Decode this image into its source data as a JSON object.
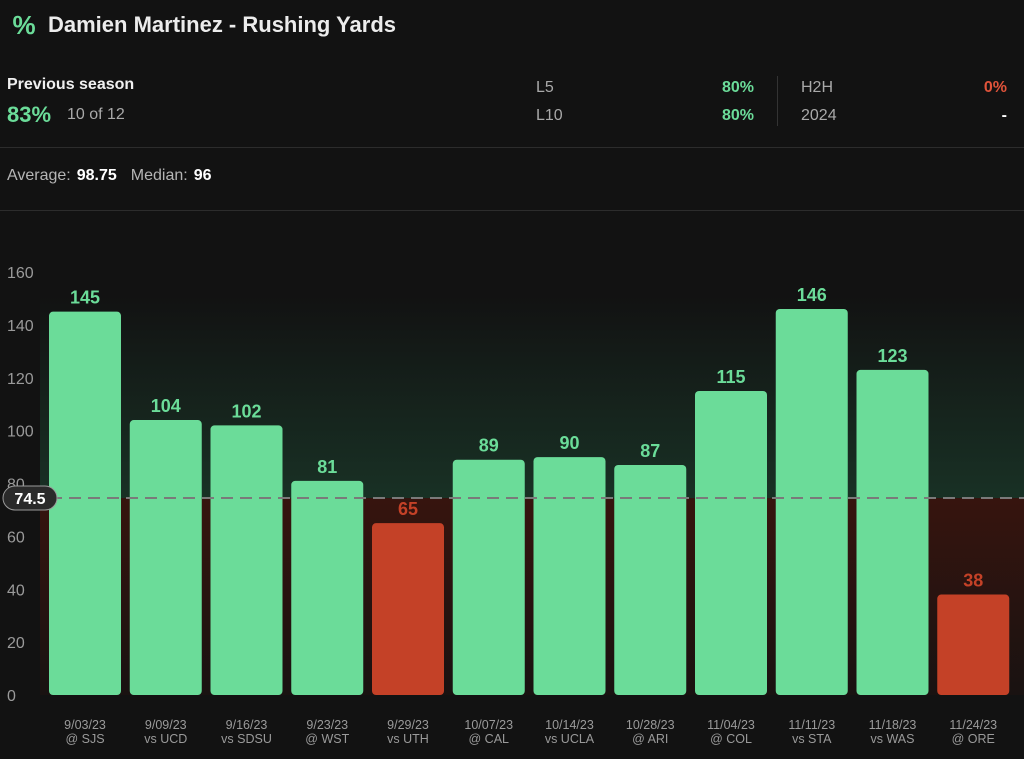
{
  "header": {
    "icon": "percent-icon",
    "title": "Damien Martinez - Rushing Yards"
  },
  "summary": {
    "previous_season_label": "Previous season",
    "previous_season_pct": "83%",
    "previous_season_count": "10 of 12",
    "l5_label": "L5",
    "l5_value": "80%",
    "l10_label": "L10",
    "l10_value": "80%",
    "h2h_label": "H2H",
    "h2h_value": "0%",
    "season_label": "2024",
    "season_value": "-"
  },
  "averages": {
    "average_label": "Average:",
    "average_value": "98.75",
    "median_label": "Median:",
    "median_value": "96"
  },
  "colors": {
    "over": "#6bdc99",
    "under": "#c44127",
    "background": "#121212"
  },
  "chart_data": {
    "type": "bar",
    "line": 74.5,
    "line_label": "74.5",
    "ylim": [
      0,
      160
    ],
    "yticks": [
      0,
      20,
      40,
      60,
      80,
      100,
      120,
      140,
      160
    ],
    "categories": [
      {
        "date": "9/03/23",
        "opp": "@ SJS"
      },
      {
        "date": "9/09/23",
        "opp": "vs UCD"
      },
      {
        "date": "9/16/23",
        "opp": "vs SDSU"
      },
      {
        "date": "9/23/23",
        "opp": "@ WST"
      },
      {
        "date": "9/29/23",
        "opp": "vs UTH"
      },
      {
        "date": "10/07/23",
        "opp": "@ CAL"
      },
      {
        "date": "10/14/23",
        "opp": "vs UCLA"
      },
      {
        "date": "10/28/23",
        "opp": "@ ARI"
      },
      {
        "date": "11/04/23",
        "opp": "@ COL"
      },
      {
        "date": "11/11/23",
        "opp": "vs STA"
      },
      {
        "date": "11/18/23",
        "opp": "vs WAS"
      },
      {
        "date": "11/24/23",
        "opp": "@ ORE"
      }
    ],
    "values": [
      145,
      104,
      102,
      81,
      65,
      89,
      90,
      87,
      115,
      146,
      123,
      38
    ]
  }
}
